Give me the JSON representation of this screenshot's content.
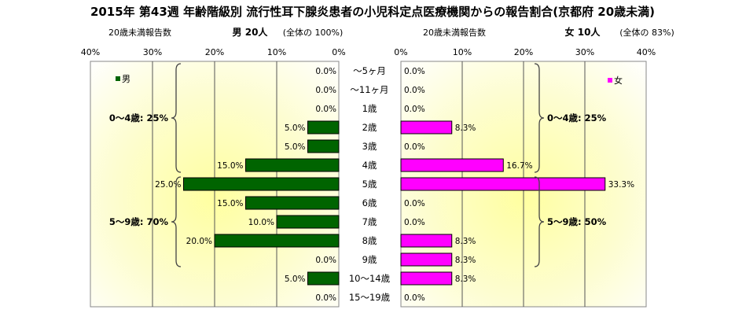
{
  "chart_data": {
    "type": "bar",
    "title": "2015年 第43週 年齢階級別 流行性耳下腺炎患者の小児科定点医療機関からの報告割合(京都府 20歳未満)",
    "categories": [
      "～5ヶ月",
      "～11ヶ月",
      "1歳",
      "2歳",
      "3歳",
      "4歳",
      "5歳",
      "6歳",
      "7歳",
      "8歳",
      "9歳",
      "10～14歳",
      "15～19歳"
    ],
    "xlim": [
      0,
      40
    ],
    "tick_labels": [
      "40%",
      "30%",
      "20%",
      "10%",
      "0%"
    ],
    "tick_labels_right": [
      "0%",
      "10%",
      "20%",
      "30%",
      "40%"
    ],
    "grid": true,
    "series": [
      {
        "name": "男",
        "values": [
          0.0,
          0.0,
          0.0,
          5.0,
          5.0,
          15.0,
          25.0,
          15.0,
          10.0,
          20.0,
          0.0,
          5.0,
          0.0
        ],
        "labels": [
          "0.0%",
          "0.0%",
          "0.0%",
          "5.0%",
          "5.0%",
          "15.0%",
          "25.0%",
          "15.0%",
          "10.0%",
          "20.0%",
          "0.0%",
          "5.0%",
          "0.0%"
        ],
        "color": "#006400",
        "header_label": "20歳未満報告数",
        "header_text": "男 20人",
        "header_share": "(全体の 100%)",
        "groups": [
          {
            "label": "0～4歳: 25%",
            "from": 0,
            "to": 5
          },
          {
            "label": "5～9歳: 70%",
            "from": 6,
            "to": 10
          }
        ]
      },
      {
        "name": "女",
        "values": [
          0.0,
          0.0,
          0.0,
          8.3,
          0.0,
          16.7,
          33.3,
          0.0,
          0.0,
          8.3,
          8.3,
          8.3,
          0.0
        ],
        "labels": [
          "0.0%",
          "0.0%",
          "0.0%",
          "8.3%",
          "0.0%",
          "16.7%",
          "33.3%",
          "0.0%",
          "0.0%",
          "8.3%",
          "8.3%",
          "8.3%",
          "0.0%"
        ],
        "color": "#ff00ff",
        "header_label": "20歳未満報告数",
        "header_text": "女 10人",
        "header_share": "(全体の 83%)",
        "groups": [
          {
            "label": "0～4歳: 25%",
            "from": 0,
            "to": 5
          },
          {
            "label": "5～9歳: 50%",
            "from": 6,
            "to": 10
          }
        ]
      }
    ]
  }
}
